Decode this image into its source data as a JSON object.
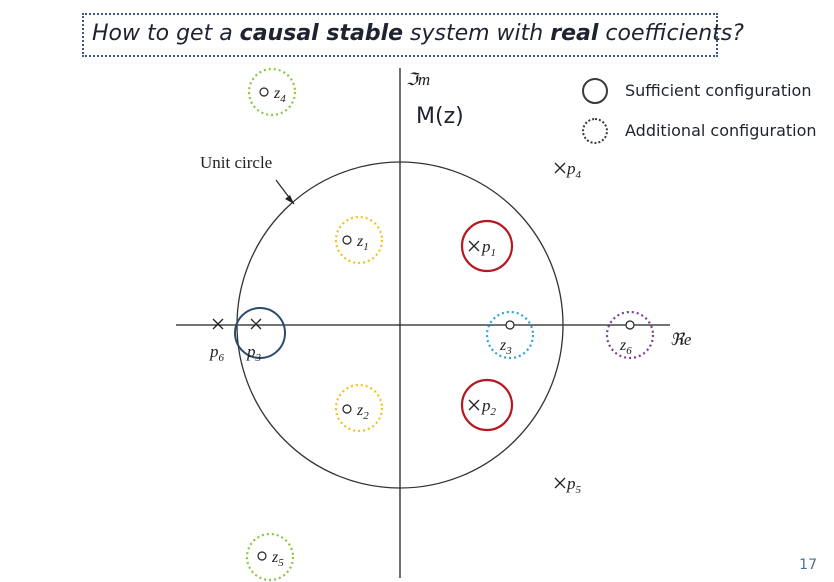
{
  "question": {
    "prefix": "How to get a ",
    "bold1": "causal stable",
    "middle": " system with ",
    "bold2": "real",
    "suffix": " coefficients?"
  },
  "diagram": {
    "im_axis_label": "ℑm",
    "re_axis_label": "ℜe",
    "function_label": "M(z)",
    "unit_circle_label": "Unit circle",
    "zeros": [
      {
        "label_main": "z",
        "label_sub": "1"
      },
      {
        "label_main": "z",
        "label_sub": "2"
      },
      {
        "label_main": "z",
        "label_sub": "3"
      },
      {
        "label_main": "z",
        "label_sub": "4"
      },
      {
        "label_main": "z",
        "label_sub": "5"
      },
      {
        "label_main": "z",
        "label_sub": "6"
      }
    ],
    "poles": [
      {
        "label_main": "p",
        "label_sub": "1"
      },
      {
        "label_main": "p",
        "label_sub": "2"
      },
      {
        "label_main": "p",
        "label_sub": "3"
      },
      {
        "label_main": "p",
        "label_sub": "4"
      },
      {
        "label_main": "p",
        "label_sub": "5"
      },
      {
        "label_main": "p",
        "label_sub": "6"
      }
    ],
    "colors": {
      "red": "#b8161f",
      "blue": "#2b4a6e",
      "yellow": "#f2c21a",
      "green": "#8bc53f",
      "cyan": "#2aa3d8",
      "purple": "#7d3c98"
    }
  },
  "legend": {
    "sufficient": "Sufficient configuration",
    "additional": "Additional configuration"
  },
  "page_number": "17"
}
